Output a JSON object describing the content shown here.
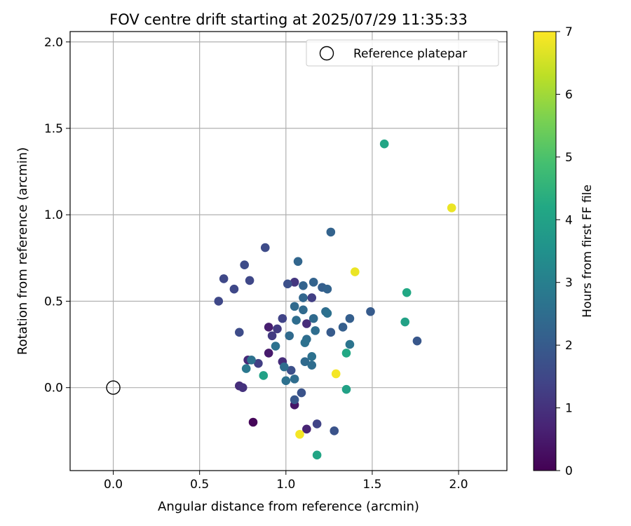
{
  "chart_data": {
    "type": "scatter",
    "title": "FOV centre drift starting at 2025/07/29 11:35:33",
    "xlabel": "Angular distance from reference (arcmin)",
    "ylabel": "Rotation from reference (arcmin)",
    "xlim": [
      -0.25,
      2.28
    ],
    "ylim": [
      -0.48,
      2.06
    ],
    "xticks": [
      0.0,
      0.5,
      1.0,
      1.5,
      2.0
    ],
    "xtick_labels": [
      "0.0",
      "0.5",
      "1.0",
      "1.5",
      "2.0"
    ],
    "yticks": [
      0.0,
      0.5,
      1.0,
      1.5,
      2.0
    ],
    "ytick_labels": [
      "0.0",
      "0.5",
      "1.0",
      "1.5",
      "2.0"
    ],
    "grid": true,
    "legend": {
      "placement": "top-right",
      "entries": [
        {
          "label": "Reference platepar",
          "marker": "open-circle"
        }
      ]
    },
    "reference_point": {
      "x": 0.0,
      "y": 0.0
    },
    "colorbar": {
      "label": "Hours from first FF file",
      "range": [
        0,
        7
      ],
      "ticks": [
        0,
        1,
        2,
        3,
        4,
        5,
        6,
        7
      ],
      "tick_labels": [
        "0",
        "1",
        "2",
        "3",
        "4",
        "5",
        "6",
        "7"
      ],
      "colormap": "viridis"
    },
    "points": [
      {
        "x": 0.81,
        "y": -0.2,
        "c": 0.1
      },
      {
        "x": 1.05,
        "y": -0.1,
        "c": 0.4
      },
      {
        "x": 1.12,
        "y": -0.24,
        "c": 0.7
      },
      {
        "x": 0.73,
        "y": 0.01,
        "c": 0.9
      },
      {
        "x": 0.75,
        "y": 0.0,
        "c": 1.0
      },
      {
        "x": 0.9,
        "y": 0.35,
        "c": 0.6
      },
      {
        "x": 0.9,
        "y": 0.2,
        "c": 0.5
      },
      {
        "x": 0.78,
        "y": 0.16,
        "c": 0.8
      },
      {
        "x": 0.98,
        "y": 0.15,
        "c": 0.9
      },
      {
        "x": 1.12,
        "y": 0.37,
        "c": 0.9
      },
      {
        "x": 1.05,
        "y": 0.61,
        "c": 1.1
      },
      {
        "x": 0.95,
        "y": 0.34,
        "c": 1.2
      },
      {
        "x": 0.92,
        "y": 0.3,
        "c": 1.2
      },
      {
        "x": 0.84,
        "y": 0.14,
        "c": 1.3
      },
      {
        "x": 1.15,
        "y": 0.52,
        "c": 1.3
      },
      {
        "x": 1.18,
        "y": -0.21,
        "c": 1.4
      },
      {
        "x": 0.98,
        "y": 0.4,
        "c": 1.4
      },
      {
        "x": 0.61,
        "y": 0.5,
        "c": 1.5
      },
      {
        "x": 0.64,
        "y": 0.63,
        "c": 1.5
      },
      {
        "x": 0.7,
        "y": 0.57,
        "c": 1.5
      },
      {
        "x": 0.73,
        "y": 0.32,
        "c": 1.6
      },
      {
        "x": 0.76,
        "y": 0.71,
        "c": 1.6
      },
      {
        "x": 0.79,
        "y": 0.62,
        "c": 1.5
      },
      {
        "x": 0.88,
        "y": 0.81,
        "c": 1.6
      },
      {
        "x": 1.01,
        "y": 0.6,
        "c": 1.7
      },
      {
        "x": 1.03,
        "y": 0.1,
        "c": 1.7
      },
      {
        "x": 1.09,
        "y": -0.03,
        "c": 1.8
      },
      {
        "x": 1.28,
        "y": -0.25,
        "c": 1.8
      },
      {
        "x": 1.05,
        "y": -0.07,
        "c": 1.9
      },
      {
        "x": 1.76,
        "y": 0.27,
        "c": 1.9
      },
      {
        "x": 1.49,
        "y": 0.44,
        "c": 2.0
      },
      {
        "x": 1.37,
        "y": 0.4,
        "c": 2.1
      },
      {
        "x": 1.26,
        "y": 0.9,
        "c": 2.2
      },
      {
        "x": 1.33,
        "y": 0.35,
        "c": 2.1
      },
      {
        "x": 1.26,
        "y": 0.32,
        "c": 2.0
      },
      {
        "x": 1.21,
        "y": 0.58,
        "c": 2.1
      },
      {
        "x": 1.24,
        "y": 0.57,
        "c": 2.2
      },
      {
        "x": 1.16,
        "y": 0.61,
        "c": 2.2
      },
      {
        "x": 1.1,
        "y": 0.59,
        "c": 2.2
      },
      {
        "x": 1.07,
        "y": 0.73,
        "c": 2.3
      },
      {
        "x": 1.1,
        "y": 0.52,
        "c": 2.3
      },
      {
        "x": 1.05,
        "y": 0.47,
        "c": 2.4
      },
      {
        "x": 1.1,
        "y": 0.45,
        "c": 2.4
      },
      {
        "x": 1.06,
        "y": 0.39,
        "c": 2.5
      },
      {
        "x": 1.16,
        "y": 0.4,
        "c": 2.4
      },
      {
        "x": 1.23,
        "y": 0.44,
        "c": 2.5
      },
      {
        "x": 1.24,
        "y": 0.43,
        "c": 2.6
      },
      {
        "x": 1.17,
        "y": 0.33,
        "c": 2.5
      },
      {
        "x": 1.12,
        "y": 0.28,
        "c": 2.5
      },
      {
        "x": 1.11,
        "y": 0.26,
        "c": 2.6
      },
      {
        "x": 1.02,
        "y": 0.3,
        "c": 2.4
      },
      {
        "x": 0.94,
        "y": 0.24,
        "c": 2.6
      },
      {
        "x": 0.8,
        "y": 0.16,
        "c": 2.6
      },
      {
        "x": 0.77,
        "y": 0.11,
        "c": 2.8
      },
      {
        "x": 0.99,
        "y": 0.12,
        "c": 2.5
      },
      {
        "x": 1.0,
        "y": 0.04,
        "c": 2.6
      },
      {
        "x": 1.05,
        "y": 0.05,
        "c": 2.5
      },
      {
        "x": 1.11,
        "y": 0.15,
        "c": 2.4
      },
      {
        "x": 1.15,
        "y": 0.18,
        "c": 2.6
      },
      {
        "x": 1.15,
        "y": 0.13,
        "c": 2.5
      },
      {
        "x": 1.37,
        "y": 0.25,
        "c": 2.7
      },
      {
        "x": 1.35,
        "y": -0.01,
        "c": 4.0
      },
      {
        "x": 1.35,
        "y": 0.2,
        "c": 4.2
      },
      {
        "x": 0.87,
        "y": 0.07,
        "c": 4.0
      },
      {
        "x": 1.18,
        "y": -0.39,
        "c": 4.1
      },
      {
        "x": 1.57,
        "y": 1.41,
        "c": 4.1
      },
      {
        "x": 1.69,
        "y": 0.38,
        "c": 4.0
      },
      {
        "x": 1.7,
        "y": 0.55,
        "c": 4.2
      },
      {
        "x": 1.4,
        "y": 0.67,
        "c": 6.8
      },
      {
        "x": 1.96,
        "y": 1.04,
        "c": 6.8
      },
      {
        "x": 1.29,
        "y": 0.08,
        "c": 6.9
      },
      {
        "x": 1.08,
        "y": -0.27,
        "c": 6.9
      }
    ]
  }
}
